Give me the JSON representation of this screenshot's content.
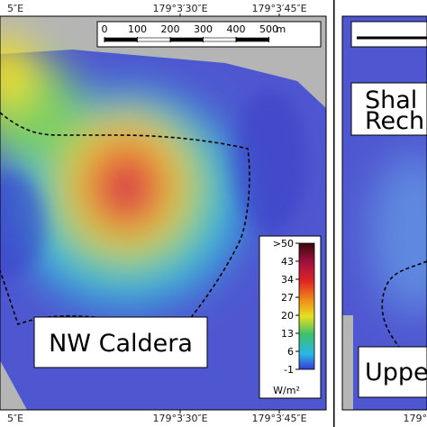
{
  "left_panel": {
    "top_coords": [
      "5″E",
      "179°3′30″E",
      "179°3′45″E"
    ],
    "bottom_coords": [
      "5″E",
      "179°3′30″E",
      "179°3′45″E"
    ],
    "scale_bar": {
      "labels": [
        "0",
        "100",
        "200",
        "300",
        "400",
        "500"
      ],
      "unit": "m"
    },
    "colorbar": {
      "labels": [
        ">50",
        "43",
        "34",
        "27",
        "20",
        "13",
        "6",
        "-1"
      ],
      "unit": "W/m²"
    },
    "label": "NW Caldera"
  },
  "right_panel": {
    "bottom_coords": [
      "179°"
    ],
    "label_lines": [
      "Shal",
      "Rech"
    ],
    "lower_label": "Uppe"
  }
}
